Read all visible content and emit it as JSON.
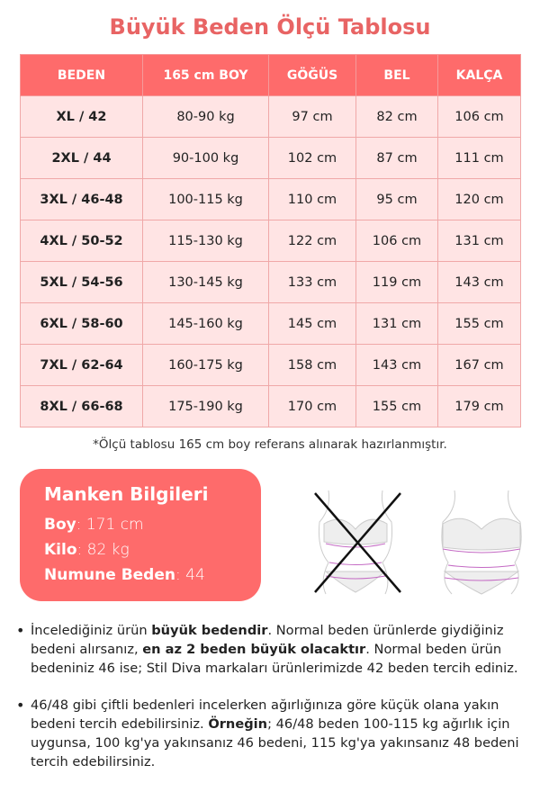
{
  "title": "Büyük Beden Ölçü Tablosu",
  "table": {
    "headers": [
      "BEDEN",
      "165 cm BOY",
      "GÖĞÜS",
      "BEL",
      "KALÇA"
    ],
    "rows": [
      [
        "XL / 42",
        "80-90 kg",
        "97 cm",
        "82 cm",
        "106 cm"
      ],
      [
        "2XL / 44",
        "90-100 kg",
        "102 cm",
        "87 cm",
        "111 cm"
      ],
      [
        "3XL / 46-48",
        "100-115 kg",
        "110 cm",
        "95 cm",
        "120 cm"
      ],
      [
        "4XL / 50-52",
        "115-130 kg",
        "122 cm",
        "106 cm",
        "131 cm"
      ],
      [
        "5XL / 54-56",
        "130-145 kg",
        "133 cm",
        "119 cm",
        "143 cm"
      ],
      [
        "6XL / 58-60",
        "145-160 kg",
        "145 cm",
        "131 cm",
        "155 cm"
      ],
      [
        "7XL / 62-64",
        "160-175 kg",
        "158 cm",
        "143 cm",
        "167 cm"
      ],
      [
        "8XL / 66-68",
        "175-190 kg",
        "170 cm",
        "155 cm",
        "179 cm"
      ]
    ]
  },
  "note": "*Ölçü tablosu 165 cm boy referans alınarak hazırlanmıştır.",
  "model": {
    "title": "Manken Bilgileri",
    "height_label": "Boy",
    "height": ": 171 cm",
    "weight_label": "Kilo",
    "weight": ": 82 kg",
    "size_label": "Numune Beden",
    "size": ": 44"
  },
  "bullets": [
    {
      "p1": "İncelediğiniz ürün ",
      "b1": "büyük bedendir",
      "p2": ". Normal beden ürünlerde giydiğiniz bedeni alırsanız, ",
      "b2": "en az 2 beden büyük olacaktır",
      "p3": ". Normal beden ürün bedeniniz 46 ise; Stil Diva markaları ürünlerimizde 42 beden tercih ediniz."
    },
    {
      "p1": "46/48 gibi çiftli bedenleri incelerken ağırlığınıza göre küçük olana yakın bedeni tercih edebilirsiniz. ",
      "b1": "Örneğin",
      "p2": "; 46/48 beden 100-115 kg ağırlık için uygunsa, 100 kg'ya yakınsanız 46 bedeni, 115 kg'ya yakınsanız 48 bedeni tercih edebilirsiniz.",
      "b2": "",
      "p3": ""
    }
  ],
  "colors": {
    "accent": "#fe6b6b",
    "title": "#e86464",
    "row_bg": "#ffe4e4"
  }
}
